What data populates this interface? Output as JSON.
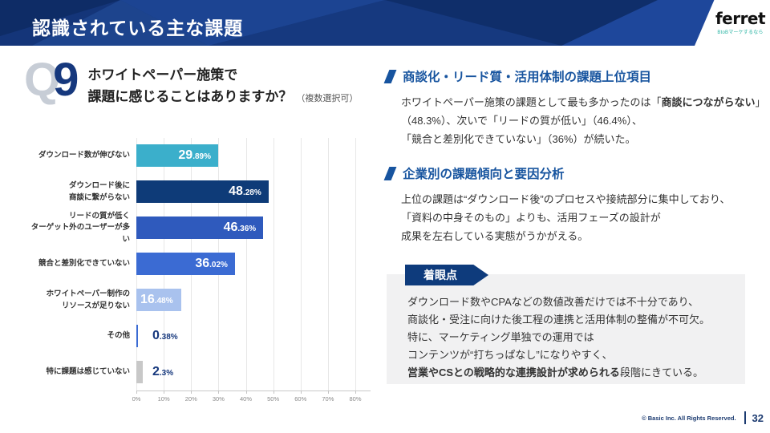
{
  "header": {
    "title": "認識されている主な課題",
    "logo_brand": "ferret",
    "logo_tagline": "BtoBマーケするなら"
  },
  "question": {
    "q_label": "Q",
    "q_number": "9",
    "line1": "ホワイトペーパー施策で",
    "line2": "課題に感じることはありますか？",
    "note": "（複数選択可）"
  },
  "chart_data": {
    "type": "bar",
    "orientation": "horizontal",
    "title": "",
    "xlabel": "",
    "ylabel": "",
    "xlim": [
      0,
      80
    ],
    "grid": true,
    "x_ticks": [
      "0%",
      "10%",
      "20%",
      "30%",
      "40%",
      "50%",
      "60%",
      "70%",
      "80%"
    ],
    "categories": [
      [
        "ダウンロード数が伸びない"
      ],
      [
        "ダウンロード後に",
        "商談に繋がらない"
      ],
      [
        "リードの質が低く",
        "ターゲット外のユーザーが多い"
      ],
      [
        "競合と差別化できていない"
      ],
      [
        "ホワイトペーパー制作の",
        "リソースが足りない"
      ],
      [
        "その他"
      ],
      [
        "特に課題は感じていない"
      ]
    ],
    "values": [
      29.89,
      48.28,
      46.36,
      36.02,
      16.48,
      0.38,
      2.3
    ],
    "value_labels": [
      [
        "29",
        ".89%"
      ],
      [
        "48",
        ".28%"
      ],
      [
        "46",
        ".36%"
      ],
      [
        "36",
        ".02%"
      ],
      [
        "16",
        ".48%"
      ],
      [
        "0",
        ".38%"
      ],
      [
        "2",
        ".3%"
      ]
    ],
    "bar_colors": [
      "#3bafcb",
      "#0e3b78",
      "#2f5abd",
      "#3b6bd3",
      "#a9c2ee",
      "#3b6bd3",
      "#c8c8c8"
    ],
    "label_styles": [
      "inside-right",
      "inside-right",
      "inside-right",
      "inside-right",
      "inside-left",
      "outside",
      "outside"
    ]
  },
  "analysis": {
    "sections": [
      {
        "heading": "商談化・リード質・活用体制の課題上位項目",
        "lines": [
          [
            {
              "t": "ホワイトペーパー施策の課題として最も多かったのは「"
            },
            {
              "t": "商談につながらない",
              "b": true
            },
            {
              "t": "」"
            }
          ],
          [
            {
              "t": "（48.3%）、次いで「リードの質が低い」（46.4%）、"
            }
          ],
          [
            {
              "t": "「競合と差別化できていない」（36%）が続いた。"
            }
          ]
        ]
      },
      {
        "heading": "企業別の課題傾向と要因分析",
        "lines": [
          [
            {
              "t": "上位の課題は“ダウンロード後”のプロセスや接続部分に集中しており、"
            }
          ],
          [
            {
              "t": "「資料の中身そのもの」よりも、活用フェーズの設計が"
            }
          ],
          [
            {
              "t": "成果を左右している実態がうかがえる。"
            }
          ]
        ]
      }
    ]
  },
  "callout": {
    "badge": "着眼点",
    "lines": [
      [
        {
          "t": "ダウンロード数やCPAなどの数値改善だけでは不十分であり、"
        }
      ],
      [
        {
          "t": "商談化・受注に向けた後工程の連携と活用体制の整備が不可欠。"
        }
      ],
      [
        {
          "t": "特に、マーケティング単独での運用では"
        }
      ],
      [
        {
          "t": "コンテンツが“打ちっぱなし”になりやすく、"
        }
      ],
      [
        {
          "t": "営業やCSとの戦略的な連携設計が求められる",
          "b": true
        },
        {
          "t": "段階にきている。"
        }
      ]
    ]
  },
  "footer": {
    "copyright": "© Basic Inc. All Rights Reserved.",
    "page_number": "32"
  },
  "theme": {
    "header_bg": "#143579",
    "accent_navy": "#0e3b7c",
    "heading_blue": "#17549f",
    "tagline_teal": "#27b3a2",
    "footer_navy": "#1b3a70",
    "graybox_bg": "#f1f1f2"
  }
}
